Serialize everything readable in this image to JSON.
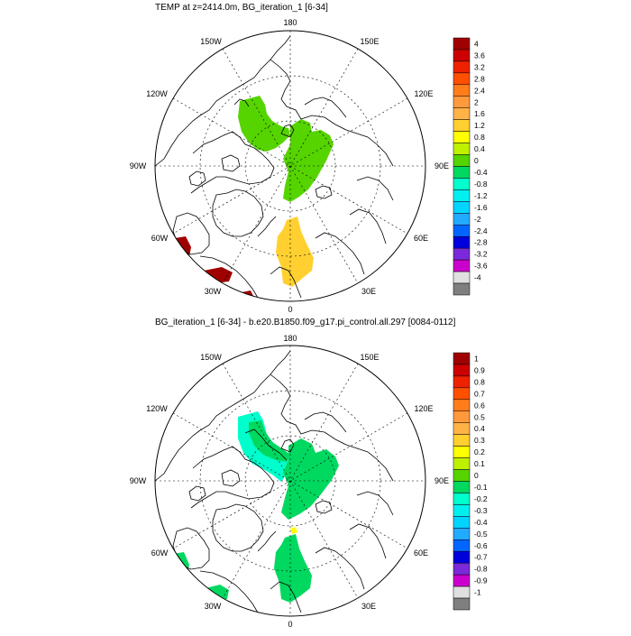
{
  "panels": [
    {
      "title": "TEMP at z=2414.0m, BG_iteration_1 [6-34]",
      "lon_labels": [
        "180",
        "150E",
        "120E",
        "90E",
        "60E",
        "30E",
        "0",
        "30W",
        "60W",
        "90W",
        "120W",
        "150W"
      ],
      "colorbar": {
        "labels": [
          "4",
          "3.6",
          "3.2",
          "2.8",
          "2.4",
          "2",
          "1.6",
          "1.2",
          "0.8",
          "0.4",
          "0",
          "-0.4",
          "-0.8",
          "-1.2",
          "-1.6",
          "-2",
          "-2.4",
          "-2.8",
          "-3.2",
          "-3.6",
          "-4"
        ],
        "colors": [
          "#a00000",
          "#cc0000",
          "#ee2200",
          "#ff5000",
          "#ff7d1a",
          "#ff9a3c",
          "#ffb347",
          "#ffd030",
          "#ffff00",
          "#bff000",
          "#55d400",
          "#00d860",
          "#00ffcc",
          "#00f0f0",
          "#00d4ff",
          "#22aaff",
          "#0066ff",
          "#0000dd",
          "#7a2ad8",
          "#cc00cc",
          "#e0e0e0",
          "#7f7f7f"
        ]
      },
      "fills": [
        {
          "name": "positive-anomaly-alaska",
          "value": "0.4 to 0.8",
          "color": "#55d400"
        },
        {
          "name": "positive-anomaly-siberia",
          "value": "0.4 to 0.8",
          "color": "#55d400"
        },
        {
          "name": "positive-anomaly-barents",
          "value": "1.2 to 1.6",
          "color": "#ffd030"
        },
        {
          "name": "positive-anomaly-labrador",
          "value": "3.6 to 4",
          "color": "#a00000"
        }
      ]
    },
    {
      "title": "BG_iteration_1 [6-34] - b.e20.B1850.f09_g17.pi_control.all.297 [0084-0112]",
      "lon_labels": [
        "180",
        "150E",
        "120E",
        "90E",
        "60E",
        "30E",
        "0",
        "30W",
        "60W",
        "90W",
        "120W",
        "150W"
      ],
      "colorbar": {
        "labels": [
          "1",
          "0.9",
          "0.8",
          "0.7",
          "0.6",
          "0.5",
          "0.4",
          "0.3",
          "0.2",
          "0.1",
          "0",
          "-0.1",
          "-0.2",
          "-0.3",
          "-0.4",
          "-0.5",
          "-0.6",
          "-0.7",
          "-0.8",
          "-0.9",
          "-1"
        ],
        "colors": [
          "#a00000",
          "#cc0000",
          "#ee2200",
          "#ff5000",
          "#ff7d1a",
          "#ff9a3c",
          "#ffb347",
          "#ffd030",
          "#ffff00",
          "#bff000",
          "#55d400",
          "#00d860",
          "#00ffcc",
          "#00f0f0",
          "#00d4ff",
          "#22aaff",
          "#0066ff",
          "#0000dd",
          "#7a2ad8",
          "#cc00cc",
          "#e0e0e0",
          "#7f7f7f"
        ]
      },
      "fills": [
        {
          "name": "positive-diff-alaska",
          "value": "0 to 0.1",
          "color": "#00d860"
        },
        {
          "name": "negative-diff-alaska",
          "value": "-0.1 to 0",
          "color": "#00ffcc"
        },
        {
          "name": "positive-diff-siberia",
          "value": "0 to 0.1",
          "color": "#00d860"
        },
        {
          "name": "positive-diff-barents",
          "value": "0 to 0.1",
          "color": "#00d860"
        },
        {
          "name": "positive-diff-labrador",
          "value": "0 to 0.1",
          "color": "#00d860"
        }
      ]
    }
  ]
}
